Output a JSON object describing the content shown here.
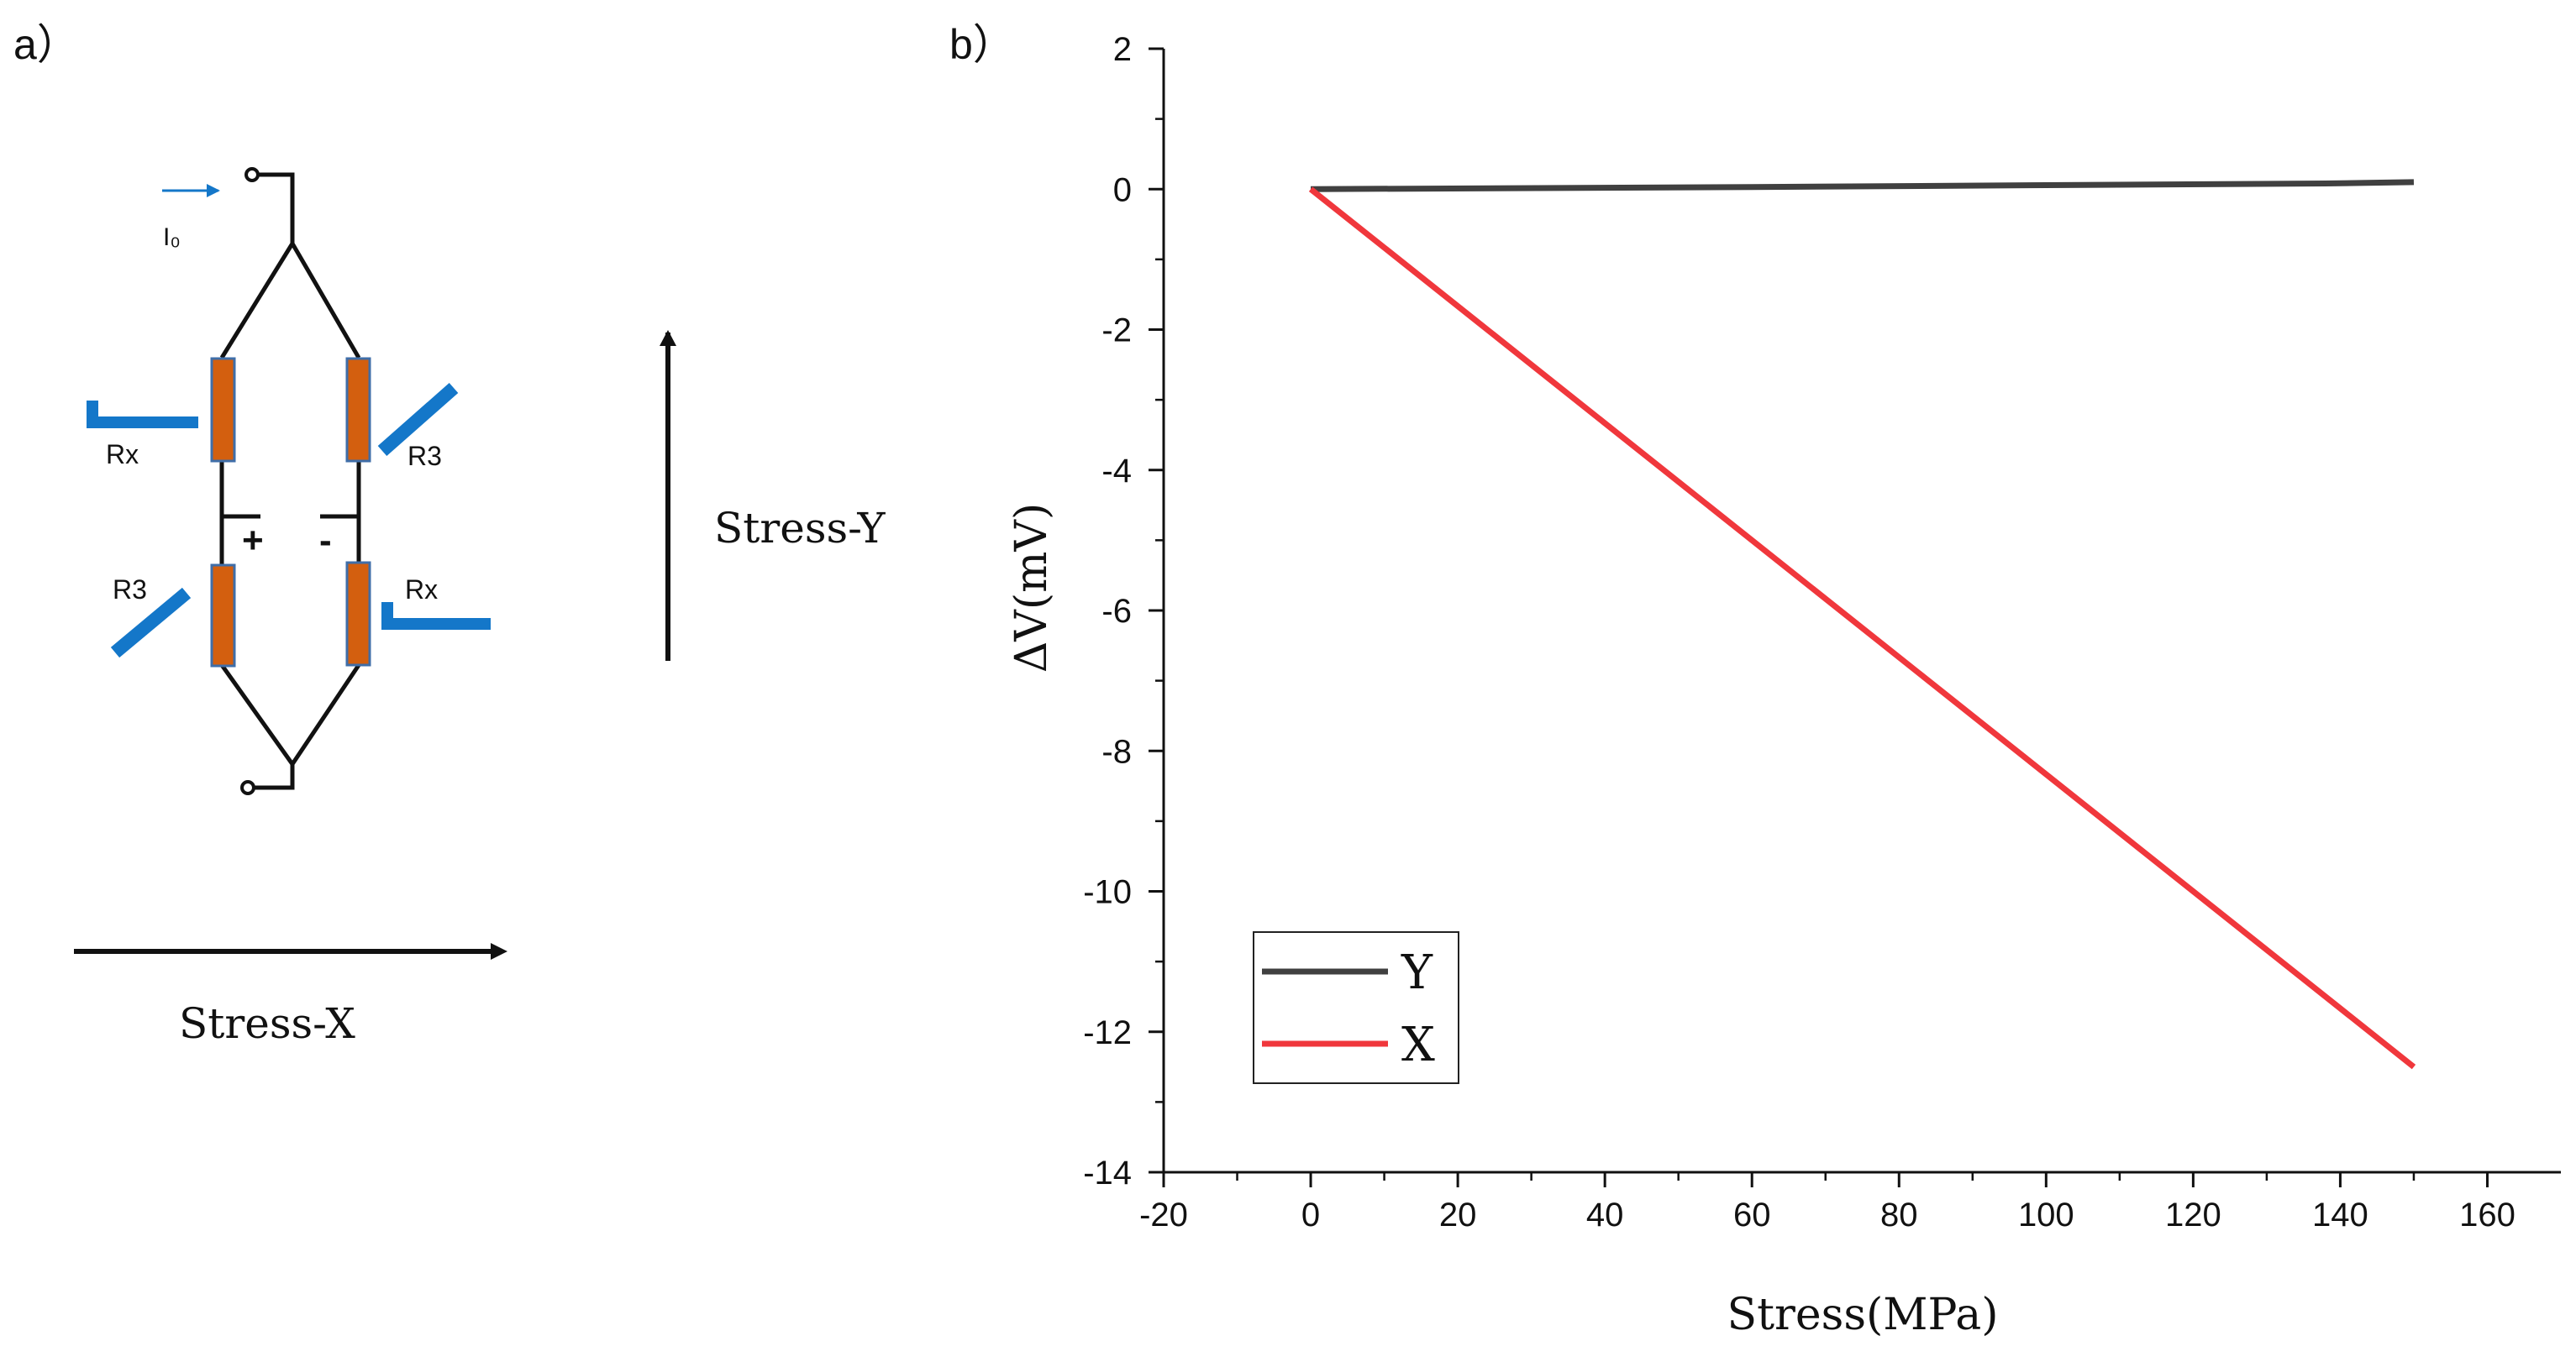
{
  "panel_a": {
    "label": "a）",
    "current_label": "I₀",
    "resistor_labels": {
      "top_left": "Rx",
      "top_right": "R3",
      "bottom_left": "R3",
      "bottom_right": "Rx"
    },
    "plus_sign": "+",
    "minus_sign": "-",
    "stress_y_label": "Stress-Y",
    "stress_x_label": "Stress-X",
    "colors": {
      "resistor_fill": "#d35f0f",
      "resistor_stroke": "#3f6ea8",
      "strain_gauge": "#1477c9",
      "wire": "#111111"
    }
  },
  "panel_b": {
    "label": "b）"
  },
  "chart_data": {
    "type": "line",
    "title": "",
    "xlabel": "Stress(MPa)",
    "ylabel": "ΔV(mV)",
    "xlim": [
      -20,
      170
    ],
    "ylim": [
      -14,
      2
    ],
    "x_ticks": [
      -20,
      0,
      20,
      40,
      60,
      80,
      100,
      120,
      140,
      160
    ],
    "y_ticks": [
      2,
      0,
      -2,
      -4,
      -6,
      -8,
      -10,
      -12,
      -14
    ],
    "legend_position": "bottom-left",
    "series": [
      {
        "name": "Y",
        "color": "#404040",
        "x": [
          0,
          60,
          105,
          138,
          150
        ],
        "y": [
          0,
          0.03,
          0.06,
          0.08,
          0.1
        ]
      },
      {
        "name": "X",
        "color": "#f0373c",
        "x": [
          0,
          150
        ],
        "y": [
          0,
          -12.5
        ]
      }
    ]
  }
}
